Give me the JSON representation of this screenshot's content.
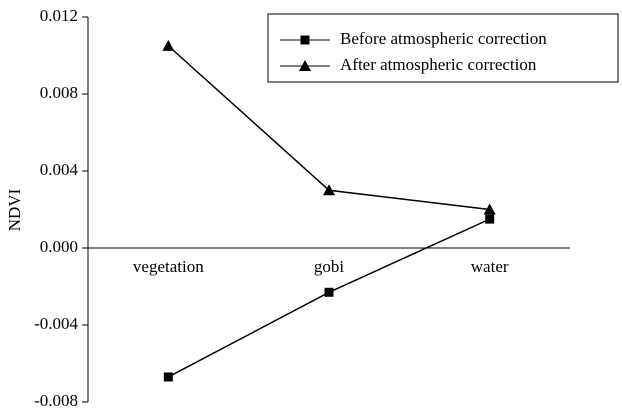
{
  "chart_data": {
    "type": "line",
    "y_label": "NDVI",
    "categories": [
      "vegetation",
      "gobi",
      "water"
    ],
    "series": [
      {
        "name": "Before atmospheric correction",
        "color": "#000000",
        "marker": "square",
        "values": [
          -0.0067,
          -0.0023,
          0.0015
        ]
      },
      {
        "name": "After atmospheric correction",
        "color": "#000000",
        "marker": "triangle",
        "values": [
          0.0105,
          0.003,
          0.002
        ]
      }
    ],
    "ylim": [
      -0.008,
      0.012
    ],
    "yticks": [
      -0.008,
      -0.004,
      {
        "value": 0,
        "label": "0.000"
      },
      0.004,
      0.008,
      0.012
    ],
    "grid": false,
    "legend": "upper right"
  }
}
